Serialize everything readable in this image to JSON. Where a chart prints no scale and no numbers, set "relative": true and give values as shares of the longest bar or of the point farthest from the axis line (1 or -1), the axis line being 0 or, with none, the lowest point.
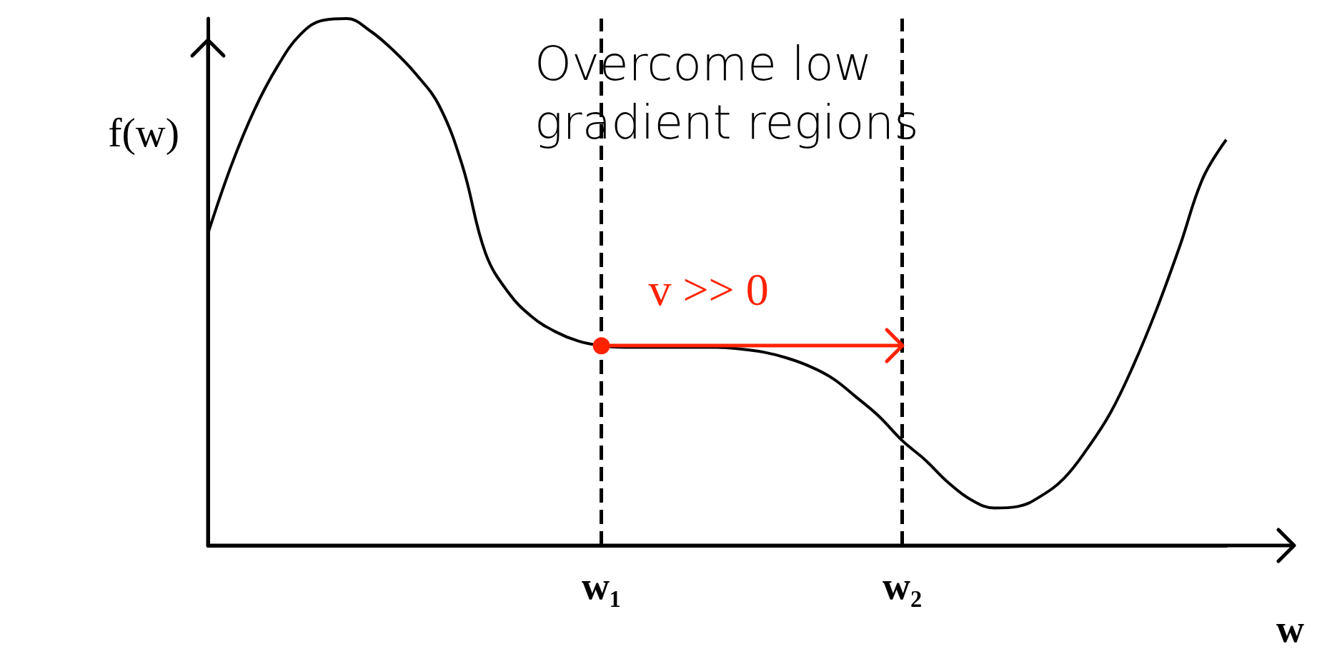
{
  "chart_data": {
    "type": "line",
    "relative": true,
    "xlabel": "w",
    "ylabel": "f(w)",
    "categories": [
      null,
      null,
      null,
      null,
      null,
      null,
      null,
      null,
      null,
      null,
      null,
      null,
      null,
      null,
      null,
      null,
      null,
      "w₁",
      null,
      null,
      null,
      null,
      null,
      null,
      null,
      null,
      null,
      null,
      null,
      null,
      "w₂",
      null,
      null,
      null,
      null,
      null,
      null,
      null,
      null,
      null,
      null,
      null,
      null,
      null,
      null
    ],
    "series": [
      {
        "color": "#000000",
        "values": [
          0.592,
          0.72,
          0.826,
          0.909,
          0.97,
          0.997,
          1,
          0.977,
          0.94,
          0.894,
          0.834,
          0.72,
          0.554,
          0.479,
          0.434,
          0.406,
          0.388,
          0.379,
          0.376,
          0.376,
          0.376,
          0.376,
          0.376,
          0.373,
          0.367,
          0.356,
          0.34,
          0.317,
          0.282,
          0.245,
          0.199,
          0.162,
          0.119,
          0.086,
          0.071,
          0.074,
          0.094,
          0.128,
          0.184,
          0.252,
          0.343,
          0.449,
          0.569,
          0.698,
          0.77
        ]
      }
    ],
    "ref_lines": [
      {
        "axis": "x",
        "value": "w₁",
        "line_style": "dashed",
        "color": "#000000"
      },
      {
        "axis": "x",
        "value": "w₂",
        "line_style": "dashed",
        "color": "#000000"
      }
    ],
    "annotations": [
      "Overcome low gradient regions",
      {
        "text": "v >> 0",
        "x": "w₁",
        "y": 0.379
      }
    ],
    "marker": "none",
    "line_style": "solid",
    "grid": false
  }
}
